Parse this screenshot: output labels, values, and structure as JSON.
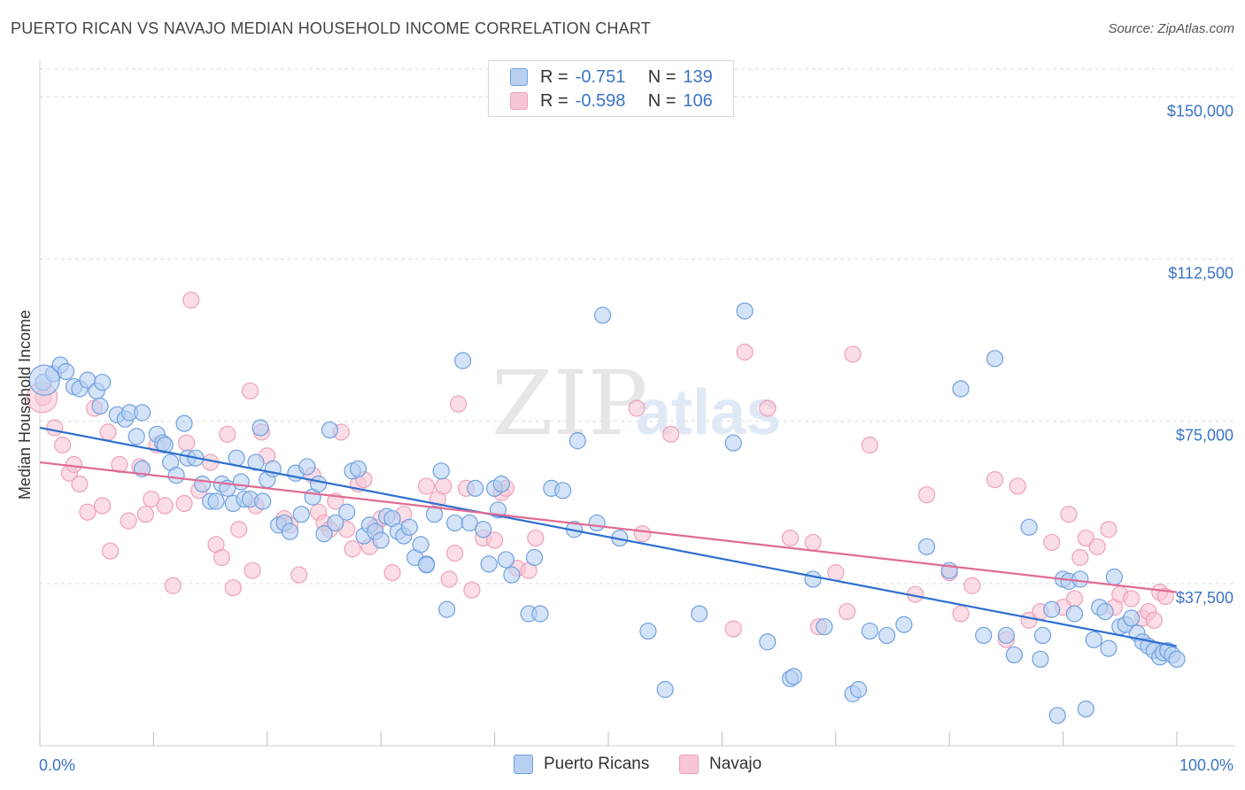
{
  "title": "PUERTO RICAN VS NAVAJO MEDIAN HOUSEHOLD INCOME CORRELATION CHART",
  "source": "Source: ZipAtlas.com",
  "watermark": {
    "zip": "ZIP",
    "atlas": "atlas"
  },
  "legend": {
    "r_label": "R =",
    "n_label": "N =",
    "series": [
      {
        "name": "Puerto Ricans",
        "r": "-0.751",
        "n": "139",
        "color": "#6fa0e0",
        "fill": "#b7d0f2",
        "line": "#2d6fcf"
      },
      {
        "name": "Navajo",
        "r": "-0.598",
        "n": "106",
        "color": "#f0a0b8",
        "fill": "#f7c6d4",
        "line": "#e06b93"
      }
    ]
  },
  "chart_data": {
    "type": "scatter",
    "title": "PUERTO RICAN VS NAVAJO MEDIAN HOUSEHOLD INCOME CORRELATION CHART",
    "xlabel": "",
    "ylabel": "Median Household Income",
    "xlim": [
      0,
      100
    ],
    "ylim": [
      0,
      156000
    ],
    "x_tick_labels": [
      "0.0%",
      "100.0%"
    ],
    "y_ticks": [
      37500,
      75000,
      112500,
      150000
    ],
    "y_tick_labels": [
      "$37,500",
      "$75,000",
      "$112,500",
      "$150,000"
    ],
    "grid": true,
    "legend_position": "top-center",
    "series": [
      {
        "name": "Puerto Ricans",
        "trend": {
          "x": [
            0,
            100
          ],
          "y": [
            73500,
            23000
          ]
        },
        "points": [
          [
            0.3,
            84000
          ],
          [
            1.2,
            86000
          ],
          [
            1.8,
            88000
          ],
          [
            2.3,
            86500
          ],
          [
            3,
            83000
          ],
          [
            3.5,
            82500
          ],
          [
            4.2,
            84500
          ],
          [
            5,
            82000
          ],
          [
            5.5,
            84000
          ],
          [
            5.3,
            78500
          ],
          [
            6.8,
            76500
          ],
          [
            7.5,
            75500
          ],
          [
            7.9,
            77000
          ],
          [
            9,
            77000
          ],
          [
            8.5,
            71500
          ],
          [
            10.3,
            72000
          ],
          [
            10.8,
            70000
          ],
          [
            9,
            64000
          ],
          [
            11,
            69500
          ],
          [
            11.5,
            65500
          ],
          [
            12,
            62500
          ],
          [
            13,
            66500
          ],
          [
            12.7,
            74500
          ],
          [
            13.7,
            66500
          ],
          [
            14.3,
            60500
          ],
          [
            15,
            56500
          ],
          [
            15.5,
            56500
          ],
          [
            16,
            60500
          ],
          [
            16.5,
            59500
          ],
          [
            17,
            56000
          ],
          [
            17.3,
            66500
          ],
          [
            17.7,
            61000
          ],
          [
            18,
            57000
          ],
          [
            18.5,
            57000
          ],
          [
            19,
            65500
          ],
          [
            19.4,
            73500
          ],
          [
            19.6,
            56500
          ],
          [
            20,
            61500
          ],
          [
            20.5,
            64000
          ],
          [
            21,
            51000
          ],
          [
            21.5,
            51500
          ],
          [
            22,
            49500
          ],
          [
            22.5,
            63000
          ],
          [
            23,
            53500
          ],
          [
            23.5,
            64500
          ],
          [
            24,
            57500
          ],
          [
            24.5,
            60500
          ],
          [
            25,
            49000
          ],
          [
            25.5,
            73000
          ],
          [
            26,
            51500
          ],
          [
            27,
            54000
          ],
          [
            27.5,
            63500
          ],
          [
            28,
            64000
          ],
          [
            28.5,
            48500
          ],
          [
            29,
            51000
          ],
          [
            29.5,
            49500
          ],
          [
            30,
            47500
          ],
          [
            30.5,
            53000
          ],
          [
            31,
            52500
          ],
          [
            31.5,
            49500
          ],
          [
            32,
            48500
          ],
          [
            32.5,
            50500
          ],
          [
            33,
            43500
          ],
          [
            33.5,
            46500
          ],
          [
            34,
            42000
          ],
          [
            34.7,
            53500
          ],
          [
            35.3,
            63500
          ],
          [
            35.8,
            31500
          ],
          [
            36.5,
            51500
          ],
          [
            37.2,
            89000
          ],
          [
            37.8,
            51500
          ],
          [
            38.3,
            59500
          ],
          [
            39,
            50000
          ],
          [
            39.5,
            42000
          ],
          [
            40,
            59500
          ],
          [
            40.3,
            54500
          ],
          [
            40.6,
            60500
          ],
          [
            41,
            43000
          ],
          [
            41.5,
            39500
          ],
          [
            43,
            30500
          ],
          [
            43.5,
            43500
          ],
          [
            44,
            30500
          ],
          [
            45,
            59500
          ],
          [
            46,
            59000
          ],
          [
            47,
            50000
          ],
          [
            47.3,
            70500
          ],
          [
            49,
            51500
          ],
          [
            49.5,
            99500
          ],
          [
            51,
            48000
          ],
          [
            53.5,
            26500
          ],
          [
            55,
            13000
          ],
          [
            58,
            30500
          ],
          [
            61,
            70000
          ],
          [
            62,
            100500
          ],
          [
            64,
            24000
          ],
          [
            66,
            15500
          ],
          [
            66.3,
            16000
          ],
          [
            68,
            38500
          ],
          [
            69,
            27500
          ],
          [
            71.5,
            12000
          ],
          [
            72,
            13000
          ],
          [
            73,
            26500
          ],
          [
            74.5,
            25500
          ],
          [
            76,
            28000
          ],
          [
            78,
            46000
          ],
          [
            80,
            40500
          ],
          [
            81,
            82500
          ],
          [
            83,
            25500
          ],
          [
            84,
            89500
          ],
          [
            85,
            25500
          ],
          [
            85.7,
            21000
          ],
          [
            87,
            50500
          ],
          [
            88.2,
            25500
          ],
          [
            88,
            20000
          ],
          [
            89,
            31500
          ],
          [
            89.5,
            7000
          ],
          [
            90,
            38500
          ],
          [
            90.5,
            38000
          ],
          [
            91,
            30500
          ],
          [
            91.5,
            38500
          ],
          [
            92,
            8500
          ],
          [
            92.7,
            24500
          ],
          [
            93.2,
            32000
          ],
          [
            93.7,
            31000
          ],
          [
            94,
            22500
          ],
          [
            94.5,
            39000
          ],
          [
            95,
            27500
          ],
          [
            95.5,
            28000
          ],
          [
            96,
            29500
          ],
          [
            96.5,
            26000
          ],
          [
            97,
            24000
          ],
          [
            97.5,
            23000
          ],
          [
            98,
            22000
          ],
          [
            98.5,
            20500
          ],
          [
            98.8,
            21500
          ],
          [
            99.2,
            22000
          ],
          [
            99.6,
            21000
          ],
          [
            100,
            20000
          ],
          [
            34,
            41800
          ]
        ]
      },
      {
        "name": "Navajo",
        "trend": {
          "x": [
            0,
            100
          ],
          "y": [
            65500,
            35500
          ]
        },
        "points": [
          [
            0.3,
            80500
          ],
          [
            1.3,
            73500
          ],
          [
            2,
            69500
          ],
          [
            2.6,
            63000
          ],
          [
            3,
            65000
          ],
          [
            3.5,
            60500
          ],
          [
            4.2,
            54000
          ],
          [
            4.8,
            78000
          ],
          [
            5.5,
            55500
          ],
          [
            6,
            72500
          ],
          [
            6.2,
            45000
          ],
          [
            7,
            65000
          ],
          [
            7.8,
            52000
          ],
          [
            8.8,
            64500
          ],
          [
            9.3,
            53500
          ],
          [
            9.8,
            57000
          ],
          [
            10.3,
            69500
          ],
          [
            11,
            55500
          ],
          [
            11.7,
            37000
          ],
          [
            12.7,
            56000
          ],
          [
            12.9,
            70000
          ],
          [
            13.3,
            103000
          ],
          [
            14,
            59000
          ],
          [
            15,
            65500
          ],
          [
            15.5,
            46500
          ],
          [
            16,
            43500
          ],
          [
            16.5,
            72000
          ],
          [
            17,
            36500
          ],
          [
            17.5,
            50000
          ],
          [
            18.5,
            82000
          ],
          [
            18.7,
            40500
          ],
          [
            19,
            55500
          ],
          [
            19.5,
            72500
          ],
          [
            20,
            67000
          ],
          [
            21.5,
            52500
          ],
          [
            22,
            51000
          ],
          [
            22.8,
            39500
          ],
          [
            24,
            62500
          ],
          [
            24.5,
            54000
          ],
          [
            25,
            51500
          ],
          [
            25.5,
            50000
          ],
          [
            26,
            56500
          ],
          [
            26.5,
            72500
          ],
          [
            27,
            50000
          ],
          [
            27.5,
            45500
          ],
          [
            28,
            60500
          ],
          [
            28.5,
            61500
          ],
          [
            29,
            46000
          ],
          [
            29.5,
            50500
          ],
          [
            30,
            52500
          ],
          [
            31,
            40000
          ],
          [
            32,
            53500
          ],
          [
            34,
            60000
          ],
          [
            35,
            57000
          ],
          [
            35.5,
            60000
          ],
          [
            36,
            38500
          ],
          [
            36.5,
            44500
          ],
          [
            36.8,
            79000
          ],
          [
            37.5,
            59500
          ],
          [
            38,
            36000
          ],
          [
            39,
            48000
          ],
          [
            40,
            47500
          ],
          [
            40.6,
            58500
          ],
          [
            41,
            59500
          ],
          [
            42,
            41000
          ],
          [
            43,
            40500
          ],
          [
            43.6,
            48000
          ],
          [
            52.5,
            78000
          ],
          [
            53,
            49000
          ],
          [
            55.5,
            72000
          ],
          [
            61,
            27000
          ],
          [
            62,
            91000
          ],
          [
            64,
            78000
          ],
          [
            66,
            48000
          ],
          [
            68,
            47000
          ],
          [
            68.5,
            27500
          ],
          [
            70,
            40000
          ],
          [
            71,
            31000
          ],
          [
            71.5,
            90500
          ],
          [
            73,
            69500
          ],
          [
            77,
            35000
          ],
          [
            78,
            58000
          ],
          [
            80,
            40000
          ],
          [
            81,
            30500
          ],
          [
            82,
            37000
          ],
          [
            84,
            61500
          ],
          [
            85,
            24500
          ],
          [
            86,
            60000
          ],
          [
            87,
            29000
          ],
          [
            88,
            31000
          ],
          [
            89,
            47000
          ],
          [
            90,
            32000
          ],
          [
            90.5,
            53500
          ],
          [
            91,
            34000
          ],
          [
            91.5,
            43500
          ],
          [
            92,
            48000
          ],
          [
            93,
            46000
          ],
          [
            94,
            50000
          ],
          [
            94.5,
            32000
          ],
          [
            95,
            35000
          ],
          [
            96,
            34000
          ],
          [
            97,
            29500
          ],
          [
            97.5,
            31000
          ],
          [
            98,
            29000
          ],
          [
            98.5,
            35500
          ],
          [
            99,
            34500
          ]
        ]
      }
    ]
  }
}
